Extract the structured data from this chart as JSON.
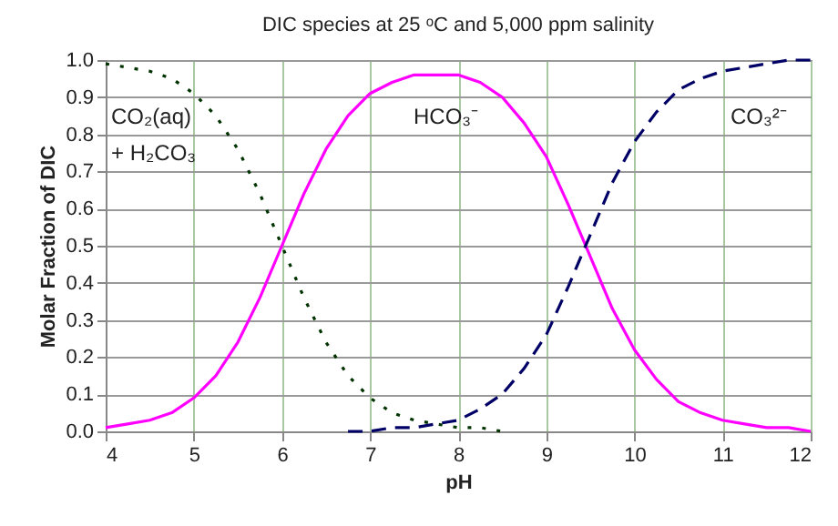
{
  "chart_data": {
    "type": "line",
    "title": "DIC species at 25 ᵒC and 5,000 ppm salinity",
    "xlabel": "pH",
    "ylabel": "Molar Fraction of DIC",
    "x": [
      4,
      4.25,
      4.5,
      4.75,
      5,
      5.25,
      5.5,
      5.75,
      6,
      6.25,
      6.5,
      6.75,
      7,
      7.25,
      7.5,
      7.75,
      8,
      8.25,
      8.5,
      8.75,
      9,
      9.25,
      9.5,
      9.75,
      10,
      10.25,
      10.5,
      10.75,
      11,
      11.25,
      11.5,
      11.75,
      12
    ],
    "series": [
      {
        "color": "#003300",
        "line_style": "dotted",
        "values": [
          0.99,
          0.98,
          0.97,
          0.95,
          0.91,
          0.85,
          0.76,
          0.64,
          0.5,
          0.36,
          0.24,
          0.15,
          0.09,
          0.05,
          0.03,
          0.02,
          0.01,
          0.01,
          0.0,
          null,
          null,
          null,
          null,
          null,
          null,
          null,
          null,
          null,
          null,
          null,
          null,
          null,
          null
        ]
      },
      {
        "color": "#ff00ff",
        "line_style": "solid",
        "values": [
          0.01,
          0.02,
          0.03,
          0.05,
          0.09,
          0.15,
          0.24,
          0.36,
          0.5,
          0.64,
          0.76,
          0.85,
          0.91,
          0.94,
          0.96,
          0.96,
          0.96,
          0.94,
          0.9,
          0.83,
          0.74,
          0.61,
          0.47,
          0.33,
          0.22,
          0.14,
          0.08,
          0.05,
          0.03,
          0.02,
          0.01,
          0.01,
          0.0
        ]
      },
      {
        "color": "#000066",
        "line_style": "dashed",
        "values": [
          null,
          null,
          null,
          null,
          null,
          null,
          null,
          null,
          null,
          null,
          null,
          0.0,
          0.0,
          0.01,
          0.01,
          0.02,
          0.03,
          0.06,
          0.1,
          0.17,
          0.26,
          0.39,
          0.53,
          0.67,
          0.78,
          0.86,
          0.92,
          0.95,
          0.97,
          0.98,
          0.99,
          1.0,
          1.0
        ]
      }
    ],
    "xlim": [
      4,
      12
    ],
    "xticks": [
      4,
      5,
      6,
      7,
      8,
      9,
      10,
      11,
      12
    ],
    "ylim": [
      0,
      1
    ],
    "yticks": [
      {
        "value": 0,
        "label": "0.0"
      },
      {
        "value": 0.1,
        "label": "0.1"
      },
      {
        "value": 0.2,
        "label": "0.2"
      },
      {
        "value": 0.3,
        "label": "0.3"
      },
      {
        "value": 0.4,
        "label": "0.4"
      },
      {
        "value": 0.5,
        "label": "0.5"
      },
      {
        "value": 0.6,
        "label": "0.6"
      },
      {
        "value": 0.7,
        "label": "0.7"
      },
      {
        "value": 0.8,
        "label": "0.8"
      },
      {
        "value": 0.9,
        "label": "0.9"
      },
      {
        "value": 1,
        "label": "1.0"
      }
    ],
    "grid": true,
    "annotations": [
      "CO₂(aq)",
      "+ H₂CO₃",
      "HCO₃⁻",
      "CO₃²⁻"
    ]
  }
}
